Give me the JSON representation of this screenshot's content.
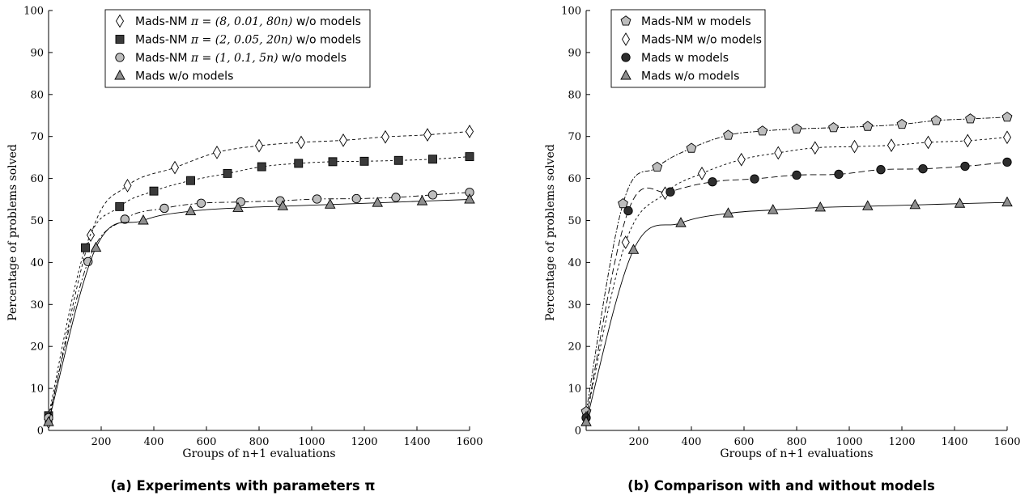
{
  "chart_data": [
    {
      "type": "line",
      "caption": "(a) Experiments with parameters π",
      "xlabel": "Groups of n+1 evaluations",
      "ylabel": "Percentage of problems solved",
      "xlim": [
        0,
        1600
      ],
      "ylim": [
        0,
        100
      ],
      "xticks": [
        200,
        400,
        600,
        800,
        1000,
        1200,
        1400,
        1600
      ],
      "yticks": [
        0,
        10,
        20,
        30,
        40,
        50,
        60,
        70,
        80,
        90,
        100
      ],
      "legend_position": "top-left",
      "series": [
        {
          "name_prefix": "Mads-NM ",
          "name_math": "π = (8, 0.01, 80n)",
          "name_suffix": " w/o models",
          "marker": "diamond",
          "dash": "4,3",
          "fill": "#ffffff",
          "x": [
            0,
            160,
            300,
            480,
            640,
            800,
            960,
            1120,
            1280,
            1440,
            1600
          ],
          "y": [
            2,
            46.5,
            58.3,
            62.6,
            66.2,
            67.8,
            68.6,
            69.1,
            69.9,
            70.4,
            71.2
          ]
        },
        {
          "name_prefix": "Mads-NM ",
          "name_math": "π = (2, 0.05, 20n)",
          "name_suffix": " w/o models",
          "marker": "square",
          "dash": "3,3",
          "fill": "#3a3a3a",
          "x": [
            0,
            140,
            270,
            400,
            540,
            680,
            810,
            950,
            1080,
            1200,
            1330,
            1460,
            1600
          ],
          "y": [
            3.5,
            43.5,
            53.3,
            57,
            59.5,
            61.2,
            62.8,
            63.6,
            64,
            64.1,
            64.3,
            64.6,
            65.2
          ]
        },
        {
          "name_prefix": "Mads-NM ",
          "name_math": "π = (1, 0.1, 5n)",
          "name_suffix": " w/o models",
          "marker": "circle",
          "dash": "7,3,2,3",
          "fill": "#bdbdbd",
          "x": [
            0,
            150,
            290,
            440,
            580,
            730,
            880,
            1020,
            1170,
            1320,
            1460,
            1600
          ],
          "y": [
            3,
            40.2,
            50.3,
            52.9,
            54.1,
            54.4,
            54.7,
            55.1,
            55.2,
            55.5,
            56.1,
            56.7
          ]
        },
        {
          "name": "Mads w/o models",
          "marker": "triangle",
          "dash": "",
          "fill": "#8f8f8f",
          "x": [
            0,
            180,
            360,
            540,
            720,
            890,
            1070,
            1250,
            1420,
            1600
          ],
          "y": [
            2,
            43.5,
            50,
            52.2,
            53,
            53.4,
            53.8,
            54.2,
            54.6,
            55
          ]
        }
      ]
    },
    {
      "type": "line",
      "caption": "(b) Comparison with and without models",
      "xlabel": "Groups of n+1 evaluations",
      "ylabel": "Percentage of problems solved",
      "xlim": [
        0,
        1600
      ],
      "ylim": [
        0,
        100
      ],
      "xticks": [
        200,
        400,
        600,
        800,
        1000,
        1200,
        1400,
        1600
      ],
      "yticks": [
        0,
        10,
        20,
        30,
        40,
        50,
        60,
        70,
        80,
        90,
        100
      ],
      "legend_position": "top-left",
      "series": [
        {
          "name": "Mads-NM w models",
          "marker": "pentagon",
          "dash": "6,2,2,2",
          "fill": "#bdbdbd",
          "x": [
            0,
            140,
            270,
            400,
            540,
            670,
            800,
            940,
            1070,
            1200,
            1330,
            1460,
            1600
          ],
          "y": [
            4.5,
            54,
            62.7,
            67.2,
            70.3,
            71.3,
            71.8,
            72.1,
            72.4,
            72.9,
            73.8,
            74.2,
            74.6
          ]
        },
        {
          "name": "Mads-NM w/o models",
          "marker": "diamond",
          "dash": "3,3",
          "fill": "#ffffff",
          "x": [
            0,
            150,
            300,
            440,
            590,
            730,
            870,
            1020,
            1160,
            1300,
            1450,
            1600
          ],
          "y": [
            3,
            44.8,
            56.5,
            61.2,
            64.5,
            66.1,
            67.3,
            67.6,
            67.9,
            68.6,
            69,
            69.8
          ]
        },
        {
          "name": "Mads w models",
          "marker": "circle",
          "dash": "8,4",
          "fill": "#2e2e2e",
          "x": [
            0,
            160,
            320,
            480,
            640,
            800,
            960,
            1120,
            1280,
            1440,
            1600
          ],
          "y": [
            3,
            52.3,
            56.8,
            59.2,
            59.9,
            60.8,
            61,
            62.1,
            62.3,
            62.9,
            63.9
          ]
        },
        {
          "name": "Mads w/o models",
          "marker": "triangle",
          "dash": "",
          "fill": "#8f8f8f",
          "x": [
            0,
            180,
            360,
            540,
            710,
            890,
            1070,
            1250,
            1420,
            1600
          ],
          "y": [
            2,
            43,
            49.4,
            51.7,
            52.5,
            53.1,
            53.4,
            53.7,
            54,
            54.3
          ]
        }
      ]
    }
  ]
}
